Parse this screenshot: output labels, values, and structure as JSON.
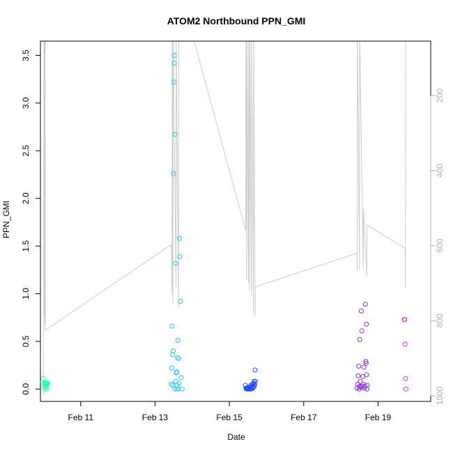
{
  "chart_data": {
    "type": "scatter",
    "title": "ATOM2 Northbound PPN_GMI",
    "xlabel": "Date",
    "ylabel": "PPN_GMI",
    "xlim": [
      "2010-02-09 22:00",
      "2010-02-20 10:00"
    ],
    "ylim": [
      -0.13,
      3.65
    ],
    "x_ticks": [
      {
        "label": "Feb 11",
        "value": "2010-02-11 00:00"
      },
      {
        "label": "Feb 13",
        "value": "2010-02-13 00:00"
      },
      {
        "label": "Feb 15",
        "value": "2010-02-15 00:00"
      },
      {
        "label": "Feb 17",
        "value": "2010-02-17 00:00"
      },
      {
        "label": "Feb 19",
        "value": "2010-02-19 00:00"
      }
    ],
    "y_ticks": [
      0.0,
      0.5,
      1.0,
      1.5,
      2.0,
      2.5,
      3.0,
      3.5
    ],
    "y_tick_labels": [
      "0.0",
      "0.5",
      "1.0",
      "1.5",
      "2.0",
      "2.5",
      "3.0",
      "3.5"
    ],
    "secondary_axis": {
      "side": "right",
      "reversed": true,
      "ylim": [
        1015,
        55
      ],
      "ticks": [
        200,
        400,
        600,
        800,
        1000
      ],
      "tick_labels": [
        "200",
        "400",
        "600",
        "800",
        "1000"
      ],
      "color": "#b0b0b0"
    },
    "secondary_line": {
      "color": "#cccccc",
      "points": [
        [
          "2010-02-10 00:05",
          1000
        ],
        [
          "2010-02-10 00:15",
          20
        ],
        [
          "2010-02-10 00:25",
          790
        ],
        [
          "2010-02-10 00:35",
          20
        ],
        [
          "2010-02-10 00:50",
          810
        ],
        [
          "2010-02-10 01:00",
          20
        ],
        [
          "2010-02-10 01:10",
          815
        ],
        [
          "2010-02-10 01:15",
          825
        ],
        [
          "2010-02-13 10:30",
          597
        ],
        [
          "2010-02-13 11:00",
          730
        ],
        [
          "2010-02-13 11:05",
          20
        ],
        [
          "2010-02-13 11:35",
          755
        ],
        [
          "2010-02-13 11:40",
          20
        ],
        [
          "2010-02-13 13:35",
          710
        ],
        [
          "2010-02-13 13:40",
          20
        ],
        [
          "2010-02-13 15:10",
          765
        ],
        [
          "2010-02-13 15:20",
          20
        ],
        [
          "2010-02-14 00:55",
          50
        ],
        [
          "2010-02-15 10:35",
          560
        ],
        [
          "2010-02-15 10:40",
          20
        ],
        [
          "2010-02-15 11:10",
          690
        ],
        [
          "2010-02-15 11:20",
          20
        ],
        [
          "2010-02-15 12:20",
          700
        ],
        [
          "2010-02-15 12:30",
          20
        ],
        [
          "2010-02-15 13:00",
          720
        ],
        [
          "2010-02-15 13:10",
          20
        ],
        [
          "2010-02-15 14:15",
          735
        ],
        [
          "2010-02-15 14:25",
          20
        ],
        [
          "2010-02-15 15:30",
          780
        ],
        [
          "2010-02-15 15:45",
          20
        ],
        [
          "2010-02-15 16:40",
          790
        ],
        [
          "2010-02-15 16:45",
          710
        ],
        [
          "2010-02-18 10:20",
          620
        ],
        [
          "2010-02-18 10:35",
          665
        ],
        [
          "2010-02-18 10:40",
          20
        ],
        [
          "2010-02-18 12:00",
          665
        ],
        [
          "2010-02-18 12:05",
          20
        ],
        [
          "2010-02-18 14:25",
          660
        ],
        [
          "2010-02-18 14:35",
          500
        ],
        [
          "2010-02-18 16:45",
          680
        ],
        [
          "2010-02-18 16:50",
          545
        ],
        [
          "2010-02-19 17:30",
          607
        ],
        [
          "2010-02-19 17:40",
          713
        ],
        [
          "2010-02-19 17:50",
          20
        ]
      ]
    },
    "series": [
      {
        "color": "#1fffb0",
        "points": [
          [
            "2010-02-10 00:00",
            0.11
          ],
          [
            "2010-02-10 00:20",
            0.06
          ],
          [
            "2010-02-10 00:30",
            0.03
          ],
          [
            "2010-02-10 00:40",
            0.0
          ],
          [
            "2010-02-10 01:00",
            0.05
          ],
          [
            "2010-02-10 01:20",
            0.07
          ],
          [
            "2010-02-10 01:40",
            0.02
          ],
          [
            "2010-02-10 02:00",
            0.05
          ],
          [
            "2010-02-10 02:15",
            0.0
          ],
          [
            "2010-02-10 02:30",
            0.05
          ],
          [
            "2010-02-10 02:45",
            0.06
          ],
          [
            "2010-02-10 01:50",
            0.06
          ]
        ]
      },
      {
        "color": "#1fc8ff",
        "points": [
          [
            "2010-02-13 10:30",
            0.05
          ],
          [
            "2010-02-13 11:00",
            0.66
          ],
          [
            "2010-02-13 11:20",
            0.36
          ],
          [
            "2010-02-13 11:30",
            0.04
          ],
          [
            "2010-02-13 11:45",
            0.4
          ],
          [
            "2010-02-13 12:00",
            2.26
          ],
          [
            "2010-02-13 12:10",
            3.22
          ],
          [
            "2010-02-13 12:20",
            3.42
          ],
          [
            "2010-02-13 12:30",
            3.5
          ],
          [
            "2010-02-13 12:45",
            0.0
          ],
          [
            "2010-02-13 13:00",
            2.67
          ],
          [
            "2010-02-13 13:20",
            1.32
          ],
          [
            "2010-02-13 13:30",
            0.08
          ],
          [
            "2010-02-13 14:00",
            0.18
          ],
          [
            "2010-02-13 14:15",
            0.04
          ],
          [
            "2010-02-13 14:30",
            0.33
          ],
          [
            "2010-02-13 14:45",
            0.51
          ],
          [
            "2010-02-13 15:00",
            0.0
          ],
          [
            "2010-02-13 15:15",
            0.32
          ],
          [
            "2010-02-13 15:30",
            0.06
          ],
          [
            "2010-02-13 15:45",
            1.58
          ],
          [
            "2010-02-13 16:00",
            1.39
          ],
          [
            "2010-02-13 16:30",
            0.92
          ],
          [
            "2010-02-13 17:00",
            0.12
          ],
          [
            "2010-02-13 17:30",
            0.0
          ],
          [
            "2010-02-13 14:10",
            0.0
          ],
          [
            "2010-02-13 10:45",
            0.22
          ],
          [
            "2010-02-13 13:50",
            0.17
          ]
        ]
      },
      {
        "color": "#1f48ff",
        "points": [
          [
            "2010-02-15 10:20",
            0.04
          ],
          [
            "2010-02-15 10:40",
            0.01
          ],
          [
            "2010-02-15 11:00",
            0.0
          ],
          [
            "2010-02-15 11:20",
            0.0
          ],
          [
            "2010-02-15 11:40",
            0.01
          ],
          [
            "2010-02-15 12:00",
            0.0
          ],
          [
            "2010-02-15 12:20",
            0.02
          ],
          [
            "2010-02-15 12:40",
            0.0
          ],
          [
            "2010-02-15 13:00",
            0.01
          ],
          [
            "2010-02-15 13:20",
            0.0
          ],
          [
            "2010-02-15 13:40",
            0.02
          ],
          [
            "2010-02-15 14:00",
            0.04
          ],
          [
            "2010-02-15 14:20",
            0.0
          ],
          [
            "2010-02-15 14:40",
            0.03
          ],
          [
            "2010-02-15 15:00",
            0.05
          ],
          [
            "2010-02-15 15:20",
            0.02
          ],
          [
            "2010-02-15 15:40",
            0.06
          ],
          [
            "2010-02-15 16:00",
            0.08
          ],
          [
            "2010-02-15 16:20",
            0.05
          ],
          [
            "2010-02-15 16:40",
            0.2
          ],
          [
            "2010-02-15 16:50",
            0.08
          ],
          [
            "2010-02-15 15:10",
            0.01
          ],
          [
            "2010-02-15 16:10",
            0.03
          ]
        ]
      },
      {
        "color": "#8a2be2",
        "points": [
          [
            "2010-02-18 10:30",
            0.01
          ],
          [
            "2010-02-18 10:50",
            0.05
          ],
          [
            "2010-02-18 11:10",
            0.14
          ],
          [
            "2010-02-18 11:30",
            0.24
          ],
          [
            "2010-02-18 11:50",
            0.0
          ],
          [
            "2010-02-18 12:10",
            0.52
          ],
          [
            "2010-02-18 12:30",
            0.08
          ],
          [
            "2010-02-18 12:50",
            0.02
          ],
          [
            "2010-02-18 13:10",
            0.82
          ],
          [
            "2010-02-18 13:30",
            0.61
          ],
          [
            "2010-02-18 13:50",
            0.03
          ],
          [
            "2010-02-18 14:10",
            0.13
          ],
          [
            "2010-02-18 14:30",
            0.05
          ],
          [
            "2010-02-18 14:50",
            0.23
          ],
          [
            "2010-02-18 15:10",
            0.01
          ],
          [
            "2010-02-18 15:30",
            0.03
          ],
          [
            "2010-02-18 15:50",
            0.89
          ],
          [
            "2010-02-18 16:10",
            0.29
          ],
          [
            "2010-02-18 16:20",
            0.27
          ],
          [
            "2010-02-18 16:30",
            0.68
          ],
          [
            "2010-02-18 16:40",
            0.15
          ],
          [
            "2010-02-18 16:50",
            0.0
          ],
          [
            "2010-02-18 17:00",
            0.04
          ],
          [
            "2010-02-18 12:00",
            0.03
          ]
        ]
      },
      {
        "color": "#ee22ee",
        "points": [
          [
            "2010-02-19 17:00",
            0.73
          ],
          [
            "2010-02-19 17:15",
            0.73
          ],
          [
            "2010-02-19 17:30",
            0.47
          ],
          [
            "2010-02-19 17:45",
            0.11
          ],
          [
            "2010-02-19 18:00",
            0.0
          ]
        ]
      }
    ]
  }
}
